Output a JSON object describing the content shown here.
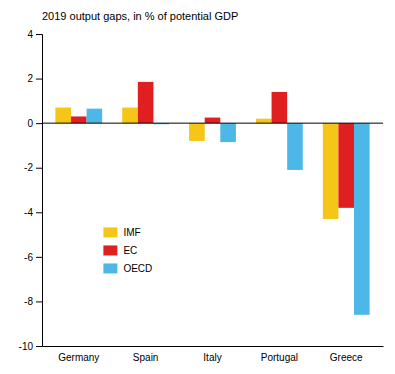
{
  "chart_data": {
    "type": "bar",
    "title": "2019  output gaps, in % of potential GDP",
    "categories": [
      "Germany",
      "Spain",
      "Italy",
      "Portugal",
      "Greece"
    ],
    "series": [
      {
        "name": "IMF",
        "color": "#F5C518",
        "values": [
          0.7,
          0.7,
          -0.8,
          0.2,
          -4.3
        ]
      },
      {
        "name": "EC",
        "color": "#E02020",
        "values": [
          0.3,
          1.85,
          0.25,
          1.4,
          -3.8
        ]
      },
      {
        "name": "OECD",
        "color": "#4DB8E8",
        "values": [
          0.65,
          -0.05,
          -0.85,
          -2.1,
          -8.6
        ]
      }
    ],
    "ylim": [
      -10,
      4
    ],
    "yticks": [
      -10,
      -8,
      -6,
      -4,
      -2,
      0,
      2,
      4
    ],
    "grid": false,
    "legend": "lower left"
  }
}
